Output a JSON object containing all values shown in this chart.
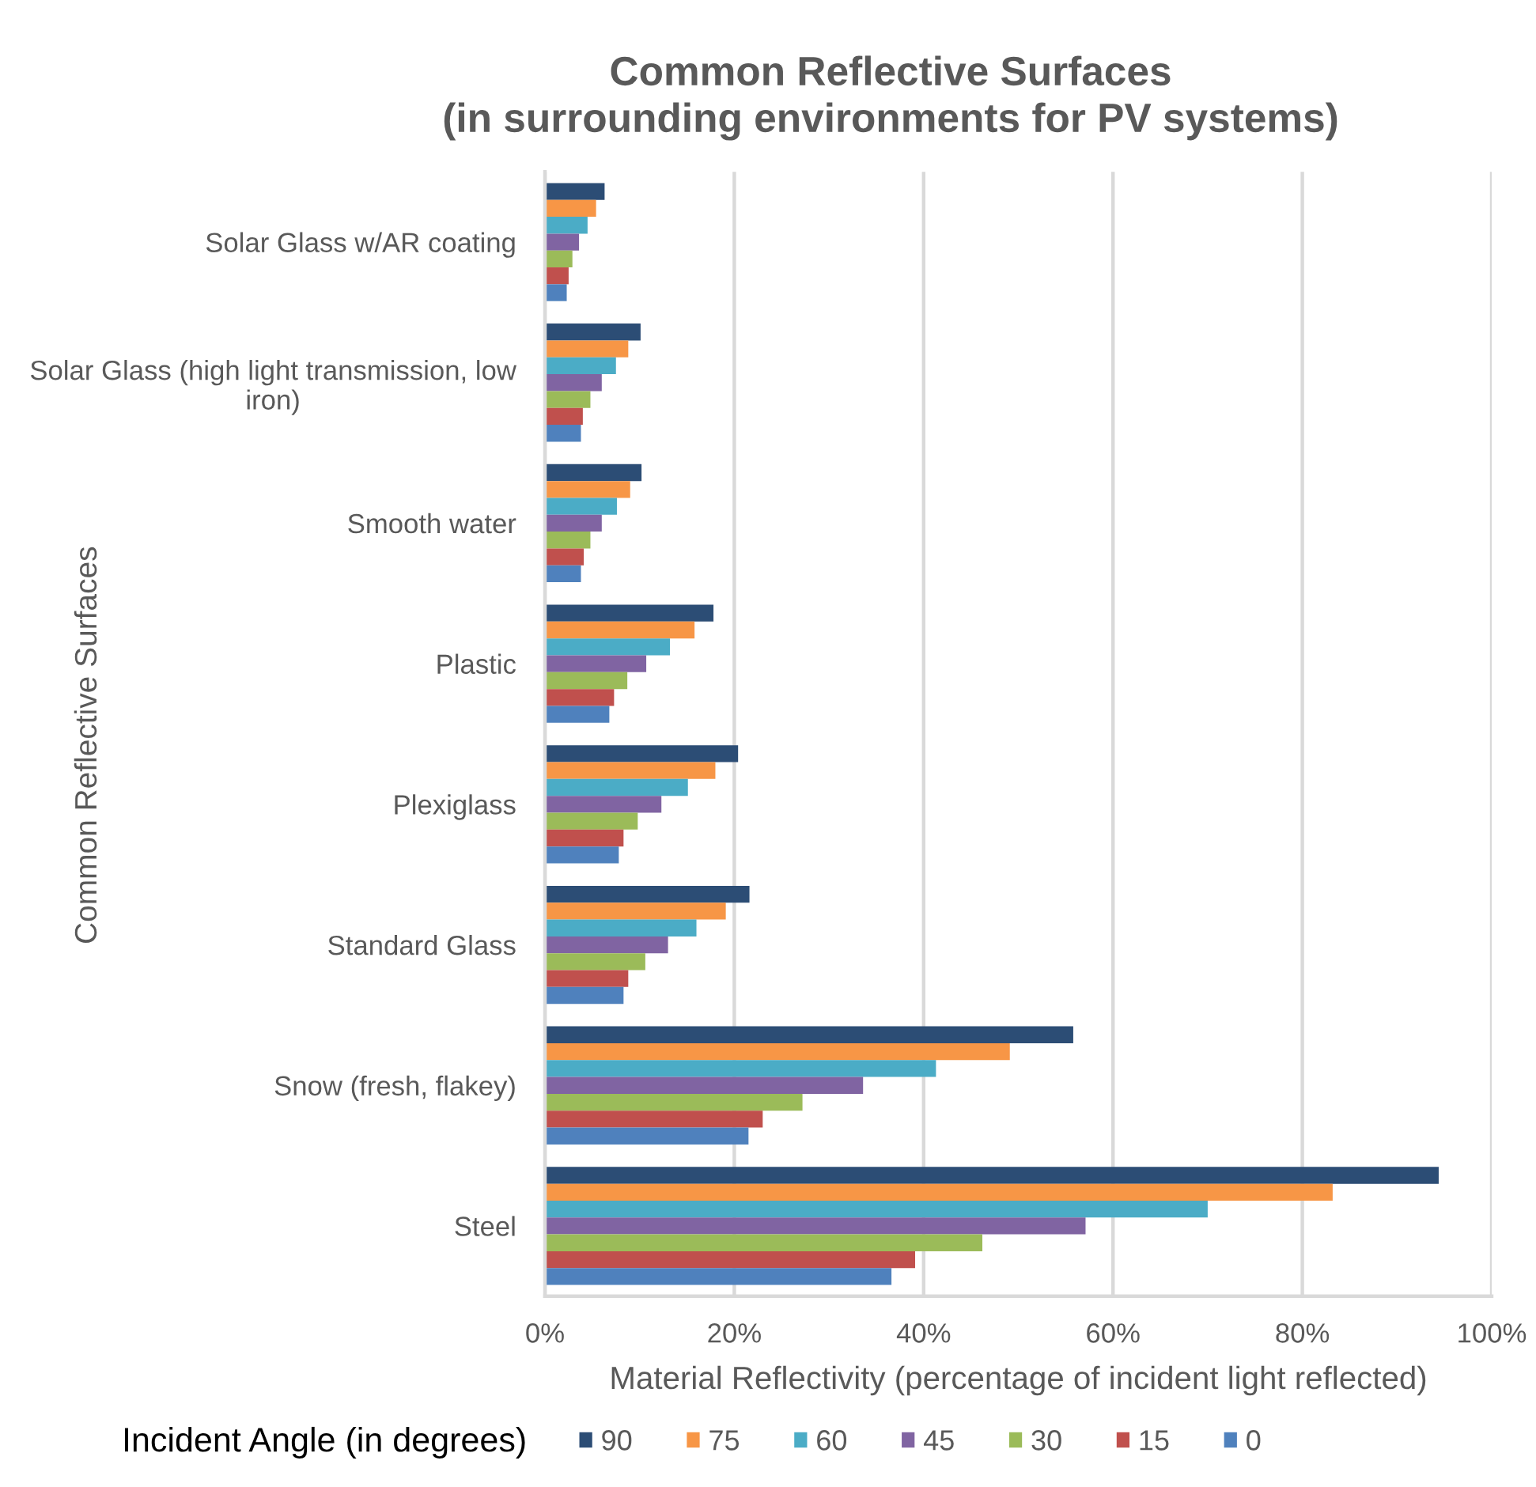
{
  "chart_data": {
    "type": "bar",
    "orientation": "horizontal",
    "title": "Common Reflective Surfaces\n(in surrounding environments for PV systems)",
    "xlabel": "Material Reflectivity (percentage of incident light reflected)",
    "ylabel": "Common Reflective Surfaces",
    "legend_title": "Incident Angle (in degrees)",
    "categories": [
      "Solar Glass w/AR coating",
      "Solar Glass (high light transmission, low iron)",
      "Smooth water",
      "Plastic",
      "Plexiglass",
      "Standard Glass",
      "Snow (fresh, flakey)",
      "Steel"
    ],
    "series": [
      {
        "name": "90",
        "color": "#2c4d75",
        "values": [
          6.3,
          10.1,
          10.2,
          17.8,
          20.4,
          21.6,
          55.8,
          94.4
        ]
      },
      {
        "name": "75",
        "color": "#f79646",
        "values": [
          5.4,
          8.8,
          9.0,
          15.8,
          18.0,
          19.1,
          49.1,
          83.2
        ]
      },
      {
        "name": "60",
        "color": "#4bacc6",
        "values": [
          4.5,
          7.5,
          7.6,
          13.2,
          15.1,
          16.0,
          41.3,
          70.0
        ]
      },
      {
        "name": "45",
        "color": "#8064a2",
        "values": [
          3.6,
          6.0,
          6.0,
          10.7,
          12.3,
          13.0,
          33.6,
          57.1
        ]
      },
      {
        "name": "30",
        "color": "#9bbb59",
        "values": [
          2.9,
          4.8,
          4.8,
          8.7,
          9.8,
          10.6,
          27.2,
          46.2
        ]
      },
      {
        "name": "15",
        "color": "#c0504d",
        "values": [
          2.5,
          4.0,
          4.1,
          7.3,
          8.3,
          8.8,
          23.0,
          39.1
        ]
      },
      {
        "name": "0",
        "color": "#4f81bd",
        "values": [
          2.3,
          3.8,
          3.8,
          6.8,
          7.8,
          8.3,
          21.5,
          36.6
        ]
      }
    ],
    "xlim": [
      0,
      100
    ],
    "xticks": [
      {
        "value": 0,
        "label": "0%"
      },
      {
        "value": 20,
        "label": "20%"
      },
      {
        "value": 40,
        "label": "40%"
      },
      {
        "value": 60,
        "label": "60%"
      },
      {
        "value": 80,
        "label": "80%"
      },
      {
        "value": 100,
        "label": "100%"
      }
    ],
    "grid": "x",
    "legend": "bottom"
  }
}
